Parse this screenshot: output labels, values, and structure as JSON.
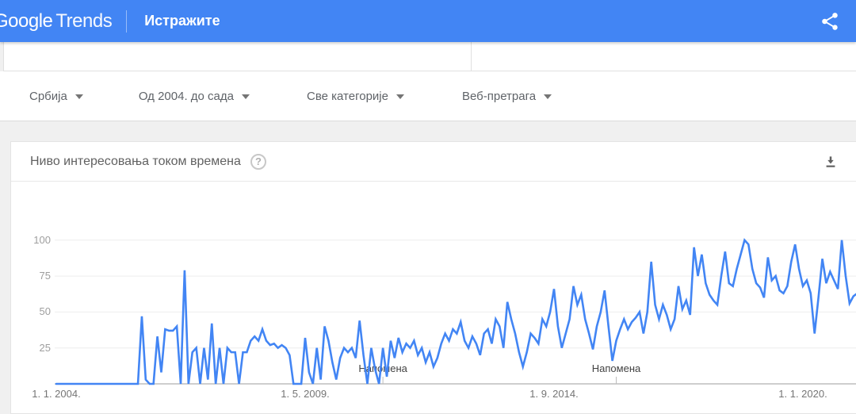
{
  "header": {
    "logo_part1": "Google",
    "logo_part2": "Trends",
    "nav_explore": "Истражите",
    "share_icon": "share-icon"
  },
  "filters": [
    {
      "label": "Србија"
    },
    {
      "label": "Од 2004. до сада"
    },
    {
      "label": "Све категорије"
    },
    {
      "label": "Веб-претрага"
    }
  ],
  "chart_card": {
    "title": "Ниво интересовања током времена",
    "help_icon_glyph": "?",
    "download_icon": "download-icon"
  },
  "colors": {
    "appbar_blue": "#4285f4",
    "line_blue": "#4285f4",
    "grid_gray": "#eeeeee",
    "axis_gray": "#9e9e9e",
    "page_gray": "#f0f0f0"
  },
  "chart_data": {
    "type": "line",
    "title": "Ниво интересовања токoм времена",
    "start": "2004-01",
    "interval": "monthly",
    "ylim": [
      0,
      100
    ],
    "y_ticks": [
      25,
      50,
      75,
      100
    ],
    "grid": true,
    "x_ticks": [
      {
        "label": "1. 1. 2004.",
        "month_index": 0
      },
      {
        "label": "1. 5. 2009.",
        "month_index": 64
      },
      {
        "label": "1. 9. 2014.",
        "month_index": 128
      },
      {
        "label": "1. 1. 2020.",
        "month_index": 192
      }
    ],
    "notes": [
      {
        "label": "Напомена",
        "month_index": 84
      },
      {
        "label": "Напомена",
        "month_index": 144
      }
    ],
    "series": [
      {
        "name": "Ниво интересовања",
        "values": [
          0,
          0,
          0,
          0,
          0,
          0,
          0,
          0,
          0,
          0,
          0,
          0,
          0,
          0,
          0,
          0,
          0,
          0,
          0,
          0,
          0,
          0,
          47,
          3,
          0,
          0,
          33,
          8,
          38,
          37,
          37,
          40,
          0,
          79,
          0,
          22,
          25,
          0,
          25,
          3,
          42,
          0,
          25,
          0,
          25,
          22,
          22,
          0,
          22,
          22,
          30,
          33,
          30,
          38,
          30,
          27,
          28,
          25,
          27,
          25,
          20,
          0,
          0,
          0,
          32,
          8,
          0,
          25,
          3,
          40,
          30,
          15,
          3,
          18,
          25,
          22,
          25,
          18,
          44,
          20,
          0,
          25,
          10,
          0,
          25,
          5,
          30,
          18,
          32,
          22,
          28,
          25,
          30,
          20,
          25,
          15,
          22,
          12,
          18,
          28,
          35,
          30,
          38,
          35,
          43,
          30,
          25,
          33,
          28,
          20,
          35,
          38,
          28,
          45,
          40,
          25,
          57,
          45,
          35,
          22,
          12,
          22,
          35,
          32,
          28,
          45,
          40,
          50,
          66,
          40,
          25,
          35,
          45,
          68,
          55,
          62,
          45,
          35,
          24,
          40,
          50,
          65,
          40,
          16,
          30,
          38,
          45,
          38,
          43,
          46,
          50,
          35,
          50,
          85,
          55,
          45,
          55,
          48,
          38,
          45,
          68,
          52,
          58,
          48,
          95,
          75,
          90,
          70,
          62,
          58,
          55,
          75,
          92,
          70,
          68,
          80,
          90,
          100,
          97,
          80,
          70,
          67,
          60,
          88,
          72,
          75,
          65,
          63,
          68,
          85,
          97,
          80,
          68,
          72,
          63,
          35,
          60,
          87,
          70,
          78,
          72,
          66,
          100,
          75,
          56,
          61,
          63
        ]
      }
    ]
  }
}
